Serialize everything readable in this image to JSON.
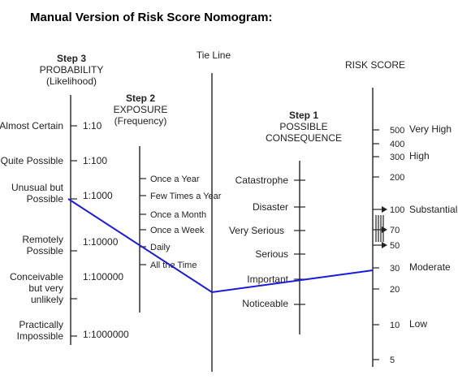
{
  "title": "Manual Version of Risk Score Nomogram:",
  "probability": {
    "step": "Step 3",
    "name": "PROBABILITY",
    "sub": "(Likelihood)",
    "labels": [
      [
        "Almost Certain"
      ],
      [
        "Quite Possible"
      ],
      [
        "Unusual but",
        "Possible"
      ],
      [
        "Remotely",
        "Possible"
      ],
      [
        "Conceivable",
        "but very",
        "unlikely"
      ],
      [
        "Practically",
        "Impossible"
      ]
    ],
    "values": [
      "1:10",
      "1:100",
      "1:1000",
      "1:10000",
      "1:100000",
      "1:1000000"
    ]
  },
  "exposure": {
    "step": "Step 2",
    "name": "EXPOSURE",
    "sub": "(Frequency)",
    "labels": [
      "Once a Year",
      "Few Times a Year",
      "Once a Month",
      "Once a Week",
      "Daily",
      "All the Time"
    ]
  },
  "tie_line": {
    "label": "Tie Line"
  },
  "consequence": {
    "step": "Step 1",
    "name": "POSSIBLE",
    "name2": "CONSEQUENCE",
    "labels": [
      "Catastrophe",
      "Disaster",
      "Very Serious",
      "Serious",
      "Important",
      "Noticeable"
    ]
  },
  "risk": {
    "name": "RISK SCORE",
    "values": [
      "500",
      "400",
      "300",
      "200",
      "100",
      "70",
      "50",
      "30",
      "20",
      "10",
      "5"
    ],
    "categories": [
      "Very High",
      "High",
      "Substantial",
      "Moderate",
      "Low"
    ]
  },
  "colors": {
    "solution_line": "#1a1adc",
    "axis": "#222222"
  }
}
